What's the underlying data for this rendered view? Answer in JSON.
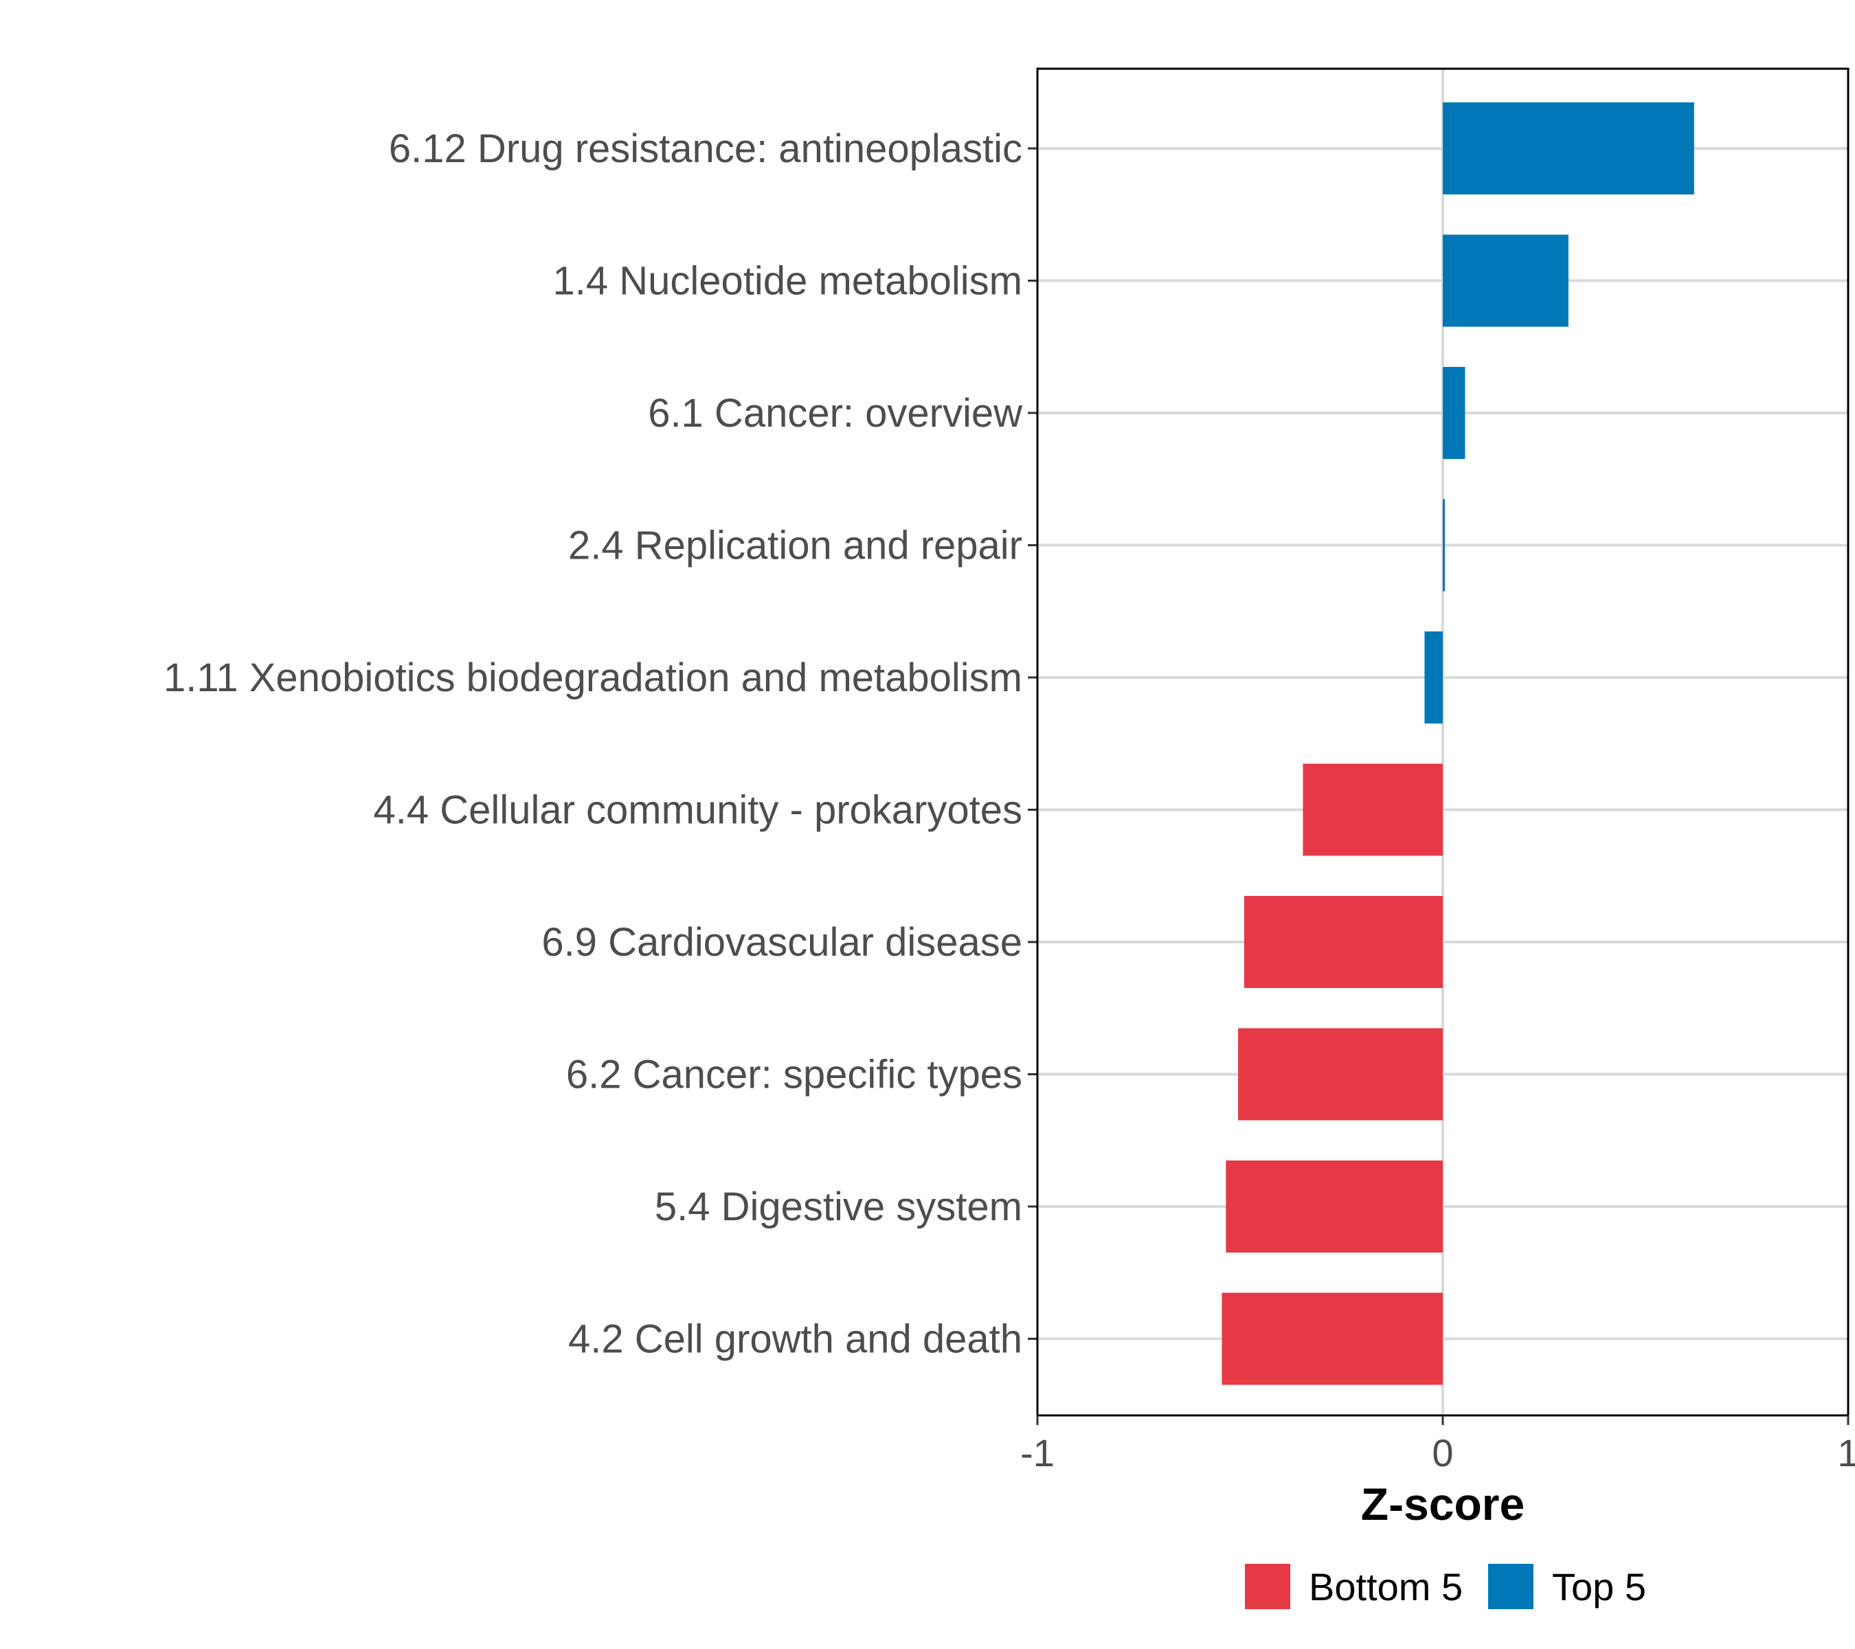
{
  "chart_data": {
    "type": "bar",
    "orientation": "horizontal",
    "title": "",
    "xlabel": "Z-score",
    "ylabel": "",
    "xlim": [
      -1,
      1
    ],
    "xticks": [
      "-1",
      "0",
      "1"
    ],
    "categories": [
      "6.12 Drug resistance: antineoplastic",
      "1.4 Nucleotide metabolism",
      "6.1 Cancer: overview",
      "2.4 Replication and repair",
      "1.11 Xenobiotics biodegradation and metabolism",
      "4.4 Cellular community - prokaryotes",
      "6.9 Cardiovascular disease",
      "6.2 Cancer: specific types",
      "5.4 Digestive system",
      "4.2 Cell growth and death"
    ],
    "values": [
      0.62,
      0.31,
      0.055,
      0.003,
      -0.045,
      -0.345,
      -0.49,
      -0.505,
      -0.535,
      -0.545
    ],
    "groups": [
      "Top 5",
      "Top 5",
      "Top 5",
      "Top 5",
      "Top 5",
      "Bottom 5",
      "Bottom 5",
      "Bottom 5",
      "Bottom 5",
      "Bottom 5"
    ],
    "legend": {
      "position": "bottom",
      "entries": [
        {
          "name": "Bottom 5",
          "color": "#E63946"
        },
        {
          "name": "Top 5",
          "color": "#0077B6"
        }
      ]
    },
    "grid": true
  }
}
